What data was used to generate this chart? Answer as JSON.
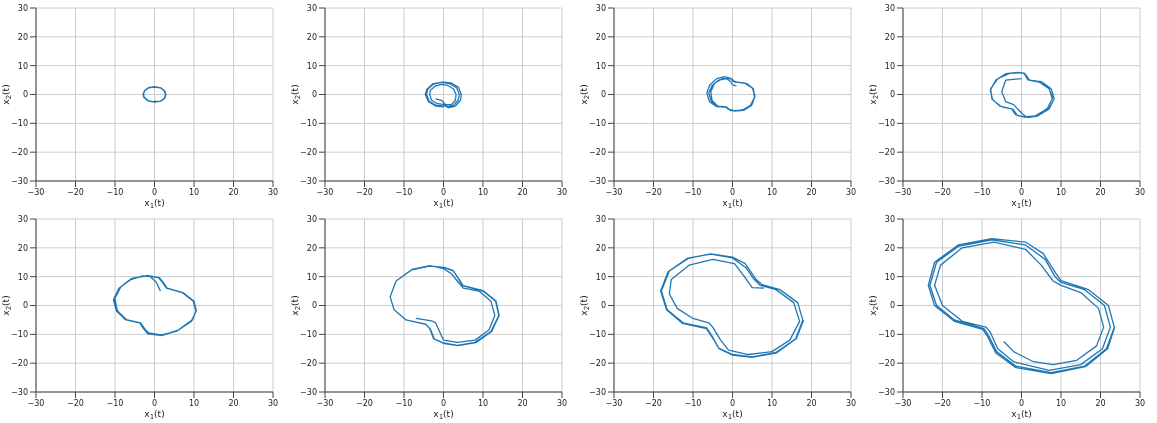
{
  "chart_data": [
    {
      "type": "line",
      "xlabel": "x$_{1}$(t)",
      "ylabel": "x$_{2}$(t)",
      "xlim": [
        -30,
        30
      ],
      "ylim": [
        -30,
        30
      ],
      "xticks": [
        -30,
        -20,
        -10,
        0,
        10,
        20,
        30
      ],
      "yticks": [
        -30,
        -20,
        -10,
        0,
        10,
        20,
        30
      ],
      "grid": true,
      "color": "#1f77b4",
      "x": [
        0.3,
        0,
        -1.5,
        -2.6,
        -2.8,
        -2.5,
        -1.5,
        0,
        1.5,
        2.5,
        2.8,
        2.5,
        1.5,
        0,
        -1.5,
        -2.7,
        -2.9,
        -2.5,
        -1.5,
        0,
        1.6,
        2.6,
        2.9,
        2.6,
        1.6,
        0.2
      ],
      "values": [
        -2,
        -2.6,
        -2.2,
        -1,
        0,
        1.3,
        2.3,
        2.6,
        2.3,
        1.2,
        0,
        -1.3,
        -2.3,
        -2.6,
        -2.3,
        -1,
        0,
        1.4,
        2.4,
        2.7,
        2.3,
        1.2,
        0,
        -1.3,
        -2.3,
        -2.6
      ]
    },
    {
      "type": "line",
      "xlabel": "x$_{1}$(t)",
      "ylabel": "x$_{2}$(t)",
      "xlim": [
        -30,
        30
      ],
      "ylim": [
        -30,
        30
      ],
      "xticks": [
        -30,
        -20,
        -10,
        0,
        10,
        20,
        30
      ],
      "yticks": [
        -30,
        -20,
        -10,
        0,
        10,
        20,
        30
      ],
      "grid": true,
      "color": "#1f77b4",
      "x": [
        -2,
        -0.5,
        0.5,
        2,
        3,
        3.2,
        2.5,
        1,
        -0.5,
        -2,
        -3.3,
        -3.5,
        -3,
        -1.5,
        0.3,
        1,
        2.5,
        3.7,
        4,
        3.3,
        1.5,
        -0.5,
        -2.5,
        -4,
        -4.3,
        -3.6,
        -1.8,
        0.5,
        1.2,
        3,
        4.3,
        4.5,
        3.8,
        2,
        0,
        -2.6,
        -4.2,
        -4.6,
        -3.8,
        -2,
        0
      ],
      "values": [
        -1.5,
        -2,
        -3.5,
        -3.5,
        -2,
        0,
        2,
        3.2,
        3.5,
        3,
        1.5,
        0,
        -2,
        -3.2,
        -3.5,
        -4.2,
        -3.8,
        -2,
        0,
        2.4,
        3.8,
        4.2,
        3.6,
        1.8,
        0,
        -2.4,
        -3.8,
        -4,
        -4.6,
        -4,
        -2,
        0,
        2.5,
        4,
        4.3,
        3.8,
        1.8,
        0,
        -2.5,
        -4,
        -4.3
      ]
    },
    {
      "type": "line",
      "xlabel": "x$_{1}$(t)",
      "ylabel": "x$_{2}$(t)",
      "xlim": [
        -30,
        30
      ],
      "ylim": [
        -30,
        30
      ],
      "xticks": [
        -30,
        -20,
        -10,
        0,
        10,
        20,
        30
      ],
      "yticks": [
        -30,
        -20,
        -10,
        0,
        10,
        20,
        30
      ],
      "grid": true,
      "color": "#1f77b4",
      "x": [
        1,
        0,
        -0.5,
        -1.5,
        -3.5,
        -5.2,
        -6,
        -5.3,
        -3.5,
        -1.5,
        -0.8,
        0.5,
        2.5,
        4.5,
        5.6,
        5.2,
        3.5,
        1,
        0,
        -0.3,
        -2,
        -4,
        -5.8,
        -6.5,
        -5.8,
        -4,
        -1.6,
        -1,
        0.5,
        2.8,
        4.8,
        5.6,
        5.3,
        3.6,
        1,
        0,
        -0.5,
        -2.5,
        -4.5,
        -5.5,
        -5.2,
        -3.8,
        -1.5,
        -0.5,
        1,
        3,
        5,
        5.7,
        5,
        3,
        0.6,
        0
      ],
      "values": [
        3,
        3.3,
        4.5,
        5.5,
        5,
        3,
        0.5,
        -2.5,
        -4.2,
        -4.5,
        -5.2,
        -5.6,
        -5.4,
        -3.8,
        -1,
        2,
        3.8,
        4.3,
        4.6,
        5.5,
        6.2,
        5.5,
        3.2,
        0.5,
        -2.5,
        -4.2,
        -4.4,
        -5.2,
        -5.8,
        -5.5,
        -3.8,
        -0.8,
        2,
        3.8,
        4.4,
        4.8,
        5.5,
        5.5,
        4,
        1,
        -2,
        -4,
        -4.3,
        -5.6,
        -5.7,
        -5.2,
        -3.3,
        -0.5,
        2.3,
        4,
        4.3,
        5.3
      ]
    },
    {
      "type": "line",
      "xlabel": "x$_{1}$(t)",
      "ylabel": "x$_{2}$(t)",
      "xlim": [
        -30,
        30
      ],
      "ylim": [
        -30,
        30
      ],
      "xticks": [
        -30,
        -20,
        -10,
        0,
        10,
        20,
        30
      ],
      "yticks": [
        -30,
        -20,
        -10,
        0,
        10,
        20,
        30
      ],
      "grid": true,
      "color": "#1f77b4",
      "x": [
        0,
        -4,
        -5,
        -4,
        -2,
        -1,
        0.5,
        1.5,
        4,
        7,
        8.3,
        7.5,
        5,
        2,
        1,
        0,
        -3,
        -6,
        -7.8,
        -7.5,
        -5.5,
        -2.5,
        -1.5,
        0.5,
        3.5,
        6.5,
        7.8,
        7,
        4.5,
        1.8,
        0.8,
        -1,
        -4,
        -6.5,
        -7.9,
        -7.3,
        -5,
        -2.2,
        -1,
        1,
        4,
        6.8,
        7.9,
        6.8,
        4,
        1.6,
        0.6
      ],
      "values": [
        5.5,
        5,
        1,
        -2.5,
        -3.5,
        -5,
        -7,
        -8,
        -7.5,
        -5,
        -1.5,
        2,
        4.5,
        5,
        7,
        7.6,
        7.3,
        5.5,
        2,
        -1.5,
        -4,
        -5,
        -7,
        -7.8,
        -7.4,
        -5,
        -1.5,
        2,
        4.3,
        5,
        7.3,
        7.7,
        7.2,
        5,
        1.5,
        -1.8,
        -4.3,
        -5.1,
        -7.3,
        -7.8,
        -7.3,
        -4.5,
        -1,
        2.5,
        4.6,
        5.1,
        7.5
      ]
    },
    {
      "type": "line",
      "xlabel": "x$_{1}$(t)",
      "ylabel": "x$_{2}$(t)",
      "xlim": [
        -30,
        30
      ],
      "ylim": [
        -30,
        30
      ],
      "xticks": [
        -30,
        -20,
        -10,
        0,
        10,
        20,
        30
      ],
      "yticks": [
        -30,
        -20,
        -10,
        0,
        10,
        20,
        30
      ],
      "grid": true,
      "color": "#1f77b4",
      "x": [
        1.5,
        0.5,
        -1,
        -3,
        -6,
        -9,
        -10.2,
        -9.3,
        -7,
        -3.5,
        -2.5,
        -1.5,
        2,
        6,
        9.5,
        10.5,
        9.8,
        7,
        3,
        2,
        1,
        -2,
        -5.5,
        -8.5,
        -10,
        -9.5,
        -7.5,
        -3.8,
        -2.8,
        -1.8,
        1.5,
        5.5,
        9.3,
        10.6,
        10,
        7.2,
        3.2,
        2.2,
        1.2,
        -2,
        -6,
        -9,
        -10.4,
        -9.6,
        -7.2,
        -3.6,
        -2.6,
        -1.7,
        2,
        6,
        9.6,
        10.5
      ],
      "values": [
        5,
        8,
        10,
        10.3,
        9,
        6,
        2,
        -2,
        -5,
        -6,
        -8,
        -9.5,
        -10.3,
        -8.5,
        -5,
        -2,
        1.5,
        4.5,
        6,
        8,
        9.7,
        10.3,
        9.5,
        6.5,
        2.5,
        -1.5,
        -4.8,
        -5.9,
        -8,
        -9.6,
        -10.3,
        -9,
        -5.5,
        -1.8,
        1.5,
        4.5,
        6,
        8,
        9.7,
        10.4,
        9.2,
        6,
        2,
        -2,
        -5,
        -6.1,
        -8.2,
        -9.8,
        -10.4,
        -8.6,
        -5,
        -2
      ]
    },
    {
      "type": "line",
      "xlabel": "x$_{1}$(t)",
      "ylabel": "x$_{2}$(t)",
      "xlim": [
        -30,
        30
      ],
      "ylim": [
        -30,
        30
      ],
      "xticks": [
        -30,
        -20,
        -10,
        0,
        10,
        20,
        30
      ],
      "yticks": [
        -30,
        -20,
        -10,
        0,
        10,
        20,
        30
      ],
      "grid": true,
      "color": "#1f77b4",
      "x": [
        -7,
        -3,
        -2,
        -1,
        0,
        3.5,
        8,
        11.5,
        13,
        12,
        9,
        5,
        3.5,
        2,
        0,
        -3.5,
        -8,
        -12,
        -13.5,
        -12.5,
        -9.5,
        -4.5,
        -3.5,
        -2.5,
        0,
        3.5,
        8,
        12,
        14,
        13.2,
        10,
        5,
        4,
        2.5,
        0,
        -3.5,
        -8,
        -12,
        -13.5,
        -12.5,
        -9.5,
        -4.5,
        -3.3,
        -2.3,
        0.2,
        3.6,
        8.2,
        12.2,
        14.1,
        13.3,
        10,
        4.8,
        3.8,
        2.4,
        0
      ],
      "values": [
        -4.5,
        -5.3,
        -6,
        -9,
        -12,
        -12.8,
        -12,
        -8.5,
        -3.5,
        1.5,
        5,
        6,
        8.5,
        11,
        12.8,
        13.8,
        12.5,
        8.5,
        3,
        -1.5,
        -5,
        -6.5,
        -8,
        -11.5,
        -13,
        -13.8,
        -12.8,
        -9,
        -3.5,
        1.5,
        5,
        6.8,
        9,
        12,
        13.2,
        13.7,
        12.4,
        8.5,
        3,
        -1.5,
        -5,
        -6.5,
        -8.2,
        -11.7,
        -13.2,
        -13.9,
        -12.9,
        -9,
        -3.5,
        1.6,
        5.2,
        7,
        9.2,
        12.2,
        13.3
      ]
    },
    {
      "type": "line",
      "xlabel": "x$_{1}$(t)",
      "ylabel": "x$_{2}$(t)",
      "xlim": [
        -30,
        30
      ],
      "ylim": [
        -30,
        30
      ],
      "xticks": [
        -30,
        -20,
        -10,
        0,
        10,
        20,
        30
      ],
      "yticks": [
        -30,
        -20,
        -10,
        0,
        10,
        20,
        30
      ],
      "grid": true,
      "color": "#1f77b4",
      "x": [
        8,
        5,
        3,
        0.5,
        -5,
        -11,
        -15.5,
        -16,
        -14,
        -10,
        -6,
        -5,
        -3,
        -1,
        4,
        10,
        14.5,
        17,
        15.5,
        11,
        7,
        5.5,
        3.5,
        0,
        -5.5,
        -11,
        -16,
        -18,
        -16.5,
        -12.5,
        -6.5,
        -5,
        -3.5,
        0,
        5,
        11,
        16,
        17.8,
        16.5,
        12,
        7.5,
        6,
        3.2,
        0,
        -5.5,
        -11.5,
        -16.3,
        -18.2,
        -16.7,
        -12.7,
        -6.6,
        -5,
        -3.4,
        0,
        5,
        11.2,
        16.2,
        18
      ],
      "values": [
        6,
        6.2,
        10,
        14.5,
        16,
        14,
        9,
        4,
        -1,
        -4.5,
        -6,
        -7.5,
        -12,
        -15.5,
        -17,
        -16,
        -12,
        -5.5,
        1,
        5.5,
        7,
        9,
        13,
        16.5,
        17.8,
        16.5,
        12,
        5,
        -1.5,
        -6,
        -7.8,
        -11,
        -14.8,
        -17,
        -17.8,
        -16.3,
        -11.5,
        -5,
        1,
        5.5,
        7.2,
        9,
        14.5,
        16.8,
        17.9,
        16.3,
        11.7,
        5,
        -1.5,
        -6.2,
        -8,
        -11.3,
        -15,
        -17.2,
        -18,
        -16.4,
        -11.4,
        -5
      ]
    },
    {
      "type": "line",
      "xlabel": "x$_{1}$(t)",
      "ylabel": "x$_{2}$(t)",
      "xlim": [
        -30,
        30
      ],
      "ylim": [
        -30,
        30
      ],
      "xticks": [
        -30,
        -20,
        -10,
        0,
        10,
        20,
        30
      ],
      "yticks": [
        -30,
        -20,
        -10,
        0,
        10,
        20,
        30
      ],
      "grid": true,
      "color": "#1f77b4",
      "x": [
        -4.5,
        -2,
        3,
        8,
        14,
        19,
        20.8,
        19.5,
        15,
        10,
        8,
        5,
        1,
        -7,
        -15,
        -20.5,
        -22,
        -20,
        -15,
        -9,
        -8,
        -6,
        -2,
        7,
        15,
        20.5,
        22.5,
        21,
        16,
        10,
        8.5,
        6,
        1,
        -7.5,
        -16,
        -21.5,
        -23.2,
        -21.5,
        -17,
        -9.5,
        -8.5,
        -6.3,
        -1.5,
        7.5,
        16,
        21.5,
        23.5,
        22,
        17,
        10,
        8.8,
        5.5,
        1,
        -7.5,
        -16,
        -22,
        -23.6,
        -22,
        -17,
        -9.8,
        -8.7,
        -6.5,
        -1.5,
        7.5,
        16.2,
        21.8,
        23.6
      ],
      "values": [
        -12.5,
        -16,
        -19.5,
        -20.5,
        -19,
        -14,
        -7.5,
        -1,
        4.5,
        7,
        8.5,
        14,
        19.5,
        22,
        20,
        14,
        7,
        0,
        -5.5,
        -7.5,
        -9,
        -15,
        -19.5,
        -22.5,
        -20.5,
        -15,
        -7.5,
        0,
        5.5,
        8,
        10,
        16,
        21,
        22.8,
        20.5,
        15,
        7,
        0,
        -5,
        -8,
        -10,
        -16,
        -21,
        -23.3,
        -21,
        -15,
        -7.5,
        0,
        5.5,
        8.6,
        11,
        18,
        22,
        23.2,
        21,
        15,
        7,
        0,
        -5.5,
        -8.3,
        -10.5,
        -16.5,
        -21.5,
        -23.6,
        -21.2,
        -15,
        -7.5
      ]
    }
  ]
}
